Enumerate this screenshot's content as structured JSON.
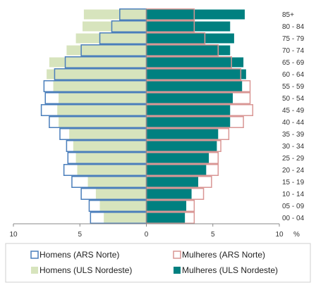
{
  "chart_data": {
    "type": "bar",
    "orientation": "horizontal",
    "title": "",
    "xlabel": "",
    "ylabel": "",
    "x_unit": "%",
    "xlim": [
      -10,
      10
    ],
    "x_ticks": [
      -10,
      -5,
      0,
      5,
      10
    ],
    "x_tick_labels": [
      "10",
      "5",
      "0",
      "5",
      "10"
    ],
    "grid": false,
    "legend_position": "bottom",
    "categories": [
      "00 - 04",
      "05 - 09",
      "10 - 14",
      "15 - 19",
      "20 - 24",
      "25 - 29",
      "30 - 34",
      "35 - 39",
      "40 - 44",
      "45 - 49",
      "50 - 54",
      "55 - 59",
      "60 - 64",
      "65 - 69",
      "70 - 74",
      "75 - 79",
      "80 - 84",
      "85+"
    ],
    "series": [
      {
        "name": "Homens (ULS Nordeste)",
        "side": "left",
        "style": "filled",
        "color": "#d7e4bd",
        "values": [
          3.2,
          3.5,
          3.8,
          4.4,
          5.2,
          5.3,
          5.5,
          5.8,
          6.6,
          6.7,
          6.6,
          7.0,
          7.5,
          7.3,
          6.0,
          5.3,
          4.8,
          4.7
        ]
      },
      {
        "name": "Mulheres (ULS Nordeste)",
        "side": "right",
        "style": "filled",
        "color": "#008080",
        "values": [
          2.9,
          3.0,
          3.4,
          3.9,
          4.5,
          4.7,
          5.3,
          5.4,
          6.3,
          6.3,
          6.5,
          7.2,
          7.5,
          7.3,
          6.3,
          6.6,
          6.3,
          7.4
        ]
      },
      {
        "name": "Homens (ARS Norte)",
        "side": "left",
        "style": "outline",
        "color": "#4a7ebb",
        "values": [
          4.2,
          4.3,
          4.9,
          5.6,
          6.2,
          5.9,
          6.0,
          6.5,
          7.3,
          7.9,
          7.6,
          7.7,
          6.9,
          6.1,
          4.9,
          3.5,
          2.6,
          2.0
        ]
      },
      {
        "name": "Mulheres (ARS Norte)",
        "side": "right",
        "style": "outline",
        "color": "#d99694",
        "values": [
          3.6,
          3.6,
          4.3,
          4.9,
          5.4,
          5.4,
          5.6,
          6.2,
          7.3,
          8.0,
          7.8,
          7.8,
          7.1,
          6.4,
          5.4,
          4.4,
          3.6,
          3.6
        ]
      }
    ]
  },
  "legend": {
    "homens_ars_norte": "Homens (ARS Norte)",
    "mulheres_ars_norte": "Mulheres (ARS Norte)",
    "homens_uls_nordeste": "Homens (ULS Nordeste)",
    "mulheres_uls_nordeste": "Mulheres (ULS Nordeste)"
  }
}
